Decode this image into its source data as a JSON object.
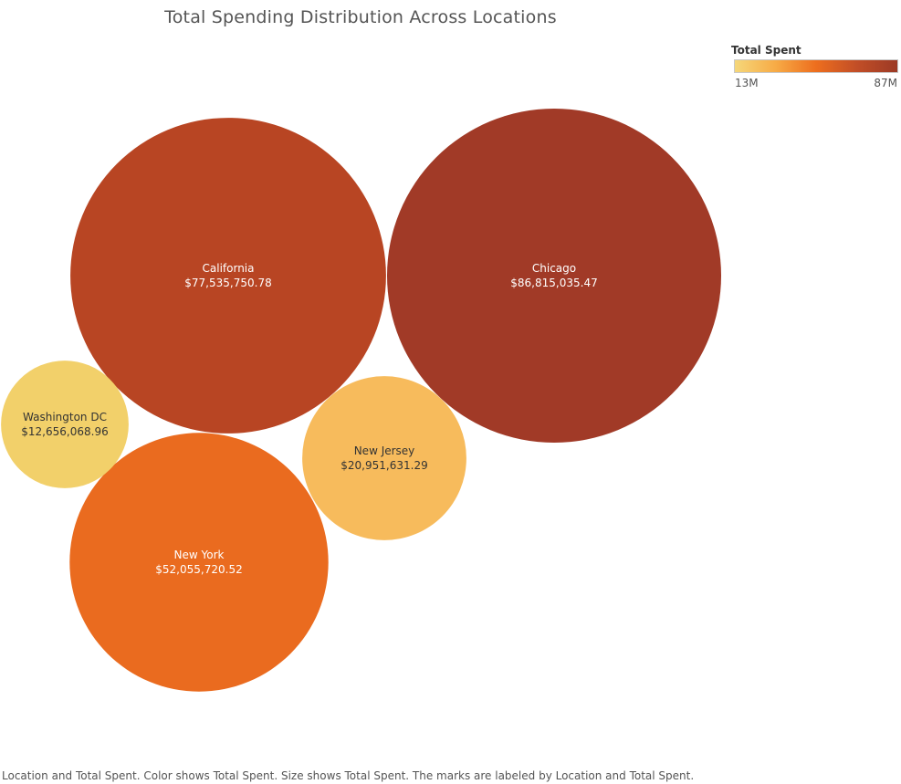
{
  "title": "Total Spending Distribution Across Locations",
  "legend": {
    "title": "Total Spent",
    "min_label": "13M",
    "max_label": "87M",
    "colors": [
      "#f5d77a",
      "#f7ab46",
      "#ed6e1e",
      "#c24e27",
      "#9c3a25"
    ]
  },
  "caption": "Location and Total Spent.  Color shows Total Spent.  Size shows Total Spent.  The marks are labeled by Location and Total Spent.",
  "chart_data": {
    "type": "bubble",
    "title": "Total Spending Distribution Across Locations",
    "size_measure": "Total Spent",
    "color_measure": "Total Spent",
    "color_range": [
      12656068.96,
      86815035.47
    ],
    "bubbles": [
      {
        "name": "Chicago",
        "value": 86815035.47,
        "label": "$86,815,035.47",
        "color": "#a13a27",
        "text_color": "#ffffff"
      },
      {
        "name": "California",
        "value": 77535750.78,
        "label": "$77,535,750.78",
        "color": "#b84523",
        "text_color": "#ffffff"
      },
      {
        "name": "New York",
        "value": 52055720.52,
        "label": "$52,055,720.52",
        "color": "#ea6b1f",
        "text_color": "#ffffff"
      },
      {
        "name": "New Jersey",
        "value": 20951631.29,
        "label": "$20,951,631.29",
        "color": "#f7bb5c",
        "text_color": "#333333"
      },
      {
        "name": "Washington DC",
        "value": 12656068.96,
        "label": "$12,656,068.96",
        "color": "#f2d06a",
        "text_color": "#333333"
      }
    ]
  }
}
